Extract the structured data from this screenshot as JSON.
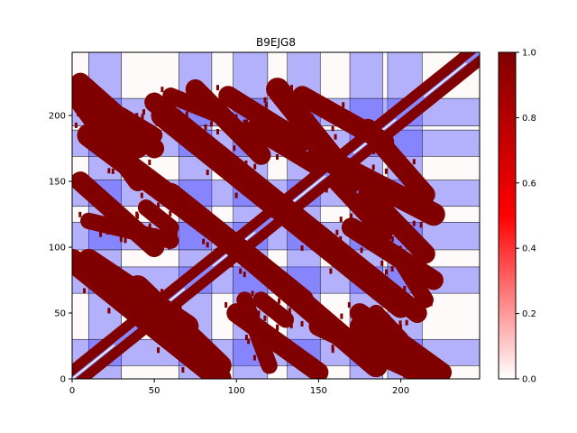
{
  "chart_data": {
    "type": "heatmap",
    "title": "B9EJG8",
    "xlabel": "",
    "ylabel": "",
    "xlim": [
      0,
      248
    ],
    "ylim": [
      0,
      248
    ],
    "xticks": [
      0,
      50,
      100,
      150,
      200
    ],
    "yticks": [
      0,
      50,
      100,
      150,
      200
    ],
    "grid": false,
    "colorbar": {
      "vmin": 0.0,
      "vmax": 1.0,
      "ticks": [
        "0.0",
        "0.2",
        "0.4",
        "0.6",
        "0.8",
        "1.0"
      ],
      "colors": [
        "#ffffff",
        "#ff0000",
        "#800000"
      ]
    },
    "domain_bands": [
      {
        "start": 10,
        "end": 30
      },
      {
        "start": 65,
        "end": 85
      },
      {
        "start": 98,
        "end": 119
      },
      {
        "start": 131,
        "end": 151
      },
      {
        "start": 169,
        "end": 189
      },
      {
        "start": 192,
        "end": 213
      }
    ],
    "band_color": "#4444ff",
    "contact_regions": [
      {
        "type": "diagonal",
        "from": 0,
        "to": 248,
        "width": 12
      },
      {
        "type": "anti",
        "x": [
          0,
          40
        ],
        "y": [
          220,
          175
        ],
        "width": 12
      },
      {
        "type": "anti",
        "x": [
          30,
          50
        ],
        "y": [
          200,
          185
        ],
        "width": 10
      },
      {
        "type": "anti",
        "x": [
          60,
          90
        ],
        "y": [
          215,
          200
        ],
        "width": 10
      },
      {
        "type": "anti",
        "x": [
          95,
          140
        ],
        "y": [
          215,
          180
        ],
        "width": 12
      },
      {
        "type": "anti",
        "x": [
          140,
          190
        ],
        "y": [
          215,
          180
        ],
        "width": 12
      },
      {
        "type": "anti",
        "x": [
          10,
          90
        ],
        "y": [
          185,
          110
        ],
        "width": 14
      },
      {
        "type": "anti",
        "x": [
          90,
          130
        ],
        "y": [
          170,
          130
        ],
        "width": 12
      },
      {
        "type": "anti",
        "x": [
          110,
          150
        ],
        "y": [
          190,
          160
        ],
        "width": 10
      },
      {
        "type": "anti",
        "x": [
          150,
          220
        ],
        "y": [
          170,
          125
        ],
        "width": 14
      },
      {
        "type": "anti",
        "x": [
          0,
          60
        ],
        "y": [
          90,
          30
        ],
        "width": 14
      },
      {
        "type": "anti",
        "x": [
          40,
          90
        ],
        "y": [
          70,
          10
        ],
        "width": 14
      },
      {
        "type": "anti",
        "x": [
          10,
          60
        ],
        "y": [
          120,
          105
        ],
        "width": 10
      },
      {
        "type": "anti",
        "x": [
          70,
          140
        ],
        "y": [
          130,
          60
        ],
        "width": 14
      },
      {
        "type": "anti",
        "x": [
          130,
          200
        ],
        "y": [
          125,
          55
        ],
        "width": 14
      },
      {
        "type": "anti",
        "x": [
          170,
          220
        ],
        "y": [
          115,
          75
        ],
        "width": 12
      },
      {
        "type": "anti",
        "x": [
          100,
          150
        ],
        "y": [
          50,
          5
        ],
        "width": 12
      },
      {
        "type": "anti",
        "x": [
          150,
          210
        ],
        "y": [
          40,
          5
        ],
        "width": 12
      },
      {
        "type": "anti",
        "x": [
          175,
          225
        ],
        "y": [
          50,
          5
        ],
        "width": 12
      },
      {
        "type": "anti",
        "x": [
          115,
          130
        ],
        "y": [
          60,
          45
        ],
        "width": 10
      },
      {
        "type": "anti",
        "x": [
          170,
          210
        ],
        "y": [
          90,
          50
        ],
        "width": 12
      }
    ]
  }
}
